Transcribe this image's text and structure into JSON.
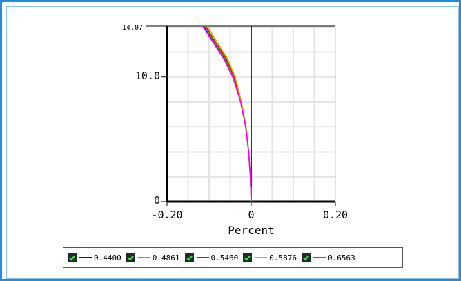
{
  "chart_data": {
    "type": "line",
    "xlabel": "Percent",
    "ylabel": "",
    "xlim": [
      -0.2,
      0.2
    ],
    "ylim": [
      0,
      14.07
    ],
    "x_tick_labels": [
      "-0.20",
      "0",
      "0.20"
    ],
    "y_tick_labels": [
      "0",
      "10.0",
      "14.07"
    ],
    "grid": true,
    "legend_position": "bottom",
    "series": [
      {
        "name": "0.4400",
        "color": "#0000ff",
        "points": [
          [
            0,
            0
          ],
          [
            -0.002,
            2
          ],
          [
            -0.006,
            4
          ],
          [
            -0.013,
            6
          ],
          [
            -0.025,
            8
          ],
          [
            -0.043,
            10
          ],
          [
            -0.064,
            11.5
          ],
          [
            -0.089,
            12.8
          ],
          [
            -0.112,
            14.07
          ]
        ]
      },
      {
        "name": "0.4861",
        "color": "#00ee00",
        "points": [
          [
            0,
            0
          ],
          [
            -0.002,
            2
          ],
          [
            -0.006,
            4
          ],
          [
            -0.013,
            6
          ],
          [
            -0.024,
            8
          ],
          [
            -0.041,
            10
          ],
          [
            -0.062,
            11.5
          ],
          [
            -0.087,
            12.8
          ],
          [
            -0.11,
            14.07
          ]
        ]
      },
      {
        "name": "0.5460",
        "color": "#ff0000",
        "points": [
          [
            0,
            0
          ],
          [
            -0.002,
            2
          ],
          [
            -0.006,
            4
          ],
          [
            -0.013,
            6
          ],
          [
            -0.024,
            8
          ],
          [
            -0.04,
            10
          ],
          [
            -0.06,
            11.5
          ],
          [
            -0.085,
            12.8
          ],
          [
            -0.108,
            14.07
          ]
        ]
      },
      {
        "name": "0.5876",
        "color": "#c8b400",
        "points": [
          [
            0,
            0
          ],
          [
            -0.002,
            2
          ],
          [
            -0.006,
            4
          ],
          [
            -0.012,
            6
          ],
          [
            -0.023,
            8
          ],
          [
            -0.038,
            10
          ],
          [
            -0.057,
            11.5
          ],
          [
            -0.081,
            12.8
          ],
          [
            -0.104,
            14.07
          ]
        ]
      },
      {
        "name": "0.6563",
        "color": "#ff00ff",
        "points": [
          [
            0,
            0
          ],
          [
            -0.002,
            2
          ],
          [
            -0.006,
            4
          ],
          [
            -0.013,
            6
          ],
          [
            -0.025,
            8
          ],
          [
            -0.044,
            10
          ],
          [
            -0.066,
            11.5
          ],
          [
            -0.091,
            12.8
          ],
          [
            -0.115,
            14.07
          ]
        ]
      }
    ]
  }
}
